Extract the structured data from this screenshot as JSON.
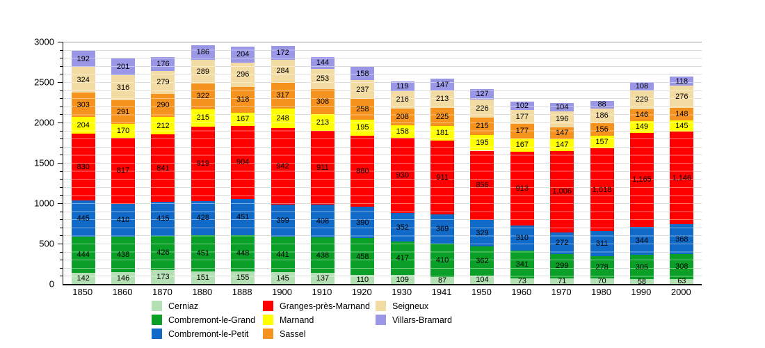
{
  "chart_data": {
    "type": "bar",
    "stacked": true,
    "title": "",
    "xlabel": "",
    "ylabel": "",
    "ylim": [
      0,
      3000
    ],
    "yticks": [
      0,
      500,
      1000,
      1500,
      2000,
      2500,
      3000
    ],
    "grid_step": 100,
    "grid": "horizontal, light gray every 100 units, darker line at 3000",
    "legend_position": "bottom",
    "bar_value_labels": "black, centered in each segment, thousands separated by comma",
    "categories": [
      "1850",
      "1860",
      "1870",
      "1880",
      "1888",
      "1900",
      "1910",
      "1920",
      "1930",
      "1941",
      "1950",
      "1960",
      "1970",
      "1980",
      "1990",
      "2000"
    ],
    "series": [
      {
        "name": "Cerniaz",
        "color": "#b5e0b5",
        "values": [
          142,
          146,
          173,
          151,
          155,
          145,
          137,
          110,
          109,
          87,
          104,
          73,
          71,
          70,
          58,
          63
        ]
      },
      {
        "name": "Combremont-le-Grand",
        "color": "#0aa028",
        "values": [
          444,
          438,
          426,
          451,
          448,
          441,
          438,
          458,
          417,
          410,
          362,
          341,
          299,
          278,
          305,
          308
        ]
      },
      {
        "name": "Combremont-le-Petit",
        "color": "#1169c8",
        "values": [
          445,
          410,
          415,
          428,
          451,
          399,
          408,
          390,
          352,
          369,
          329,
          310,
          272,
          311,
          344,
          368
        ]
      },
      {
        "name": "Granges-près-Marnand",
        "color": "#ff0000",
        "values": [
          830,
          817,
          841,
          919,
          904,
          942,
          911,
          880,
          930,
          911,
          856,
          913,
          1006,
          1018,
          1165,
          1146
        ]
      },
      {
        "name": "Marnand",
        "color": "#ffff00",
        "values": [
          204,
          170,
          212,
          215,
          167,
          248,
          213,
          195,
          158,
          181,
          195,
          167,
          147,
          157,
          149,
          145
        ]
      },
      {
        "name": "Sassel",
        "color": "#f6921e",
        "values": [
          303,
          291,
          290,
          322,
          318,
          317,
          308,
          258,
          208,
          225,
          215,
          177,
          147,
          156,
          146,
          148
        ]
      },
      {
        "name": "Seigneux",
        "color": "#f3dca4",
        "values": [
          324,
          316,
          279,
          289,
          296,
          284,
          253,
          237,
          216,
          213,
          226,
          177,
          196,
          186,
          229,
          276
        ]
      },
      {
        "name": "Villars-Bramard",
        "color": "#9a97e6",
        "values": [
          192,
          201,
          176,
          186,
          204,
          172,
          144,
          158,
          119,
          147,
          127,
          102,
          104,
          88,
          108,
          118
        ]
      }
    ]
  },
  "colors": {
    "background": "#ffffff",
    "axis": "#000000",
    "gridline": "#dcdcdc",
    "gridline_top": "#a6a6a6",
    "value_label": "#000000"
  },
  "layout_hints": {
    "legend_columns": [
      [
        "Cerniaz",
        "Combremont-le-Grand",
        "Combremont-le-Petit"
      ],
      [
        "Granges-près-Marnand",
        "Marnand",
        "Sassel"
      ],
      [
        "Seigneux",
        "Villars-Bramard"
      ]
    ]
  }
}
